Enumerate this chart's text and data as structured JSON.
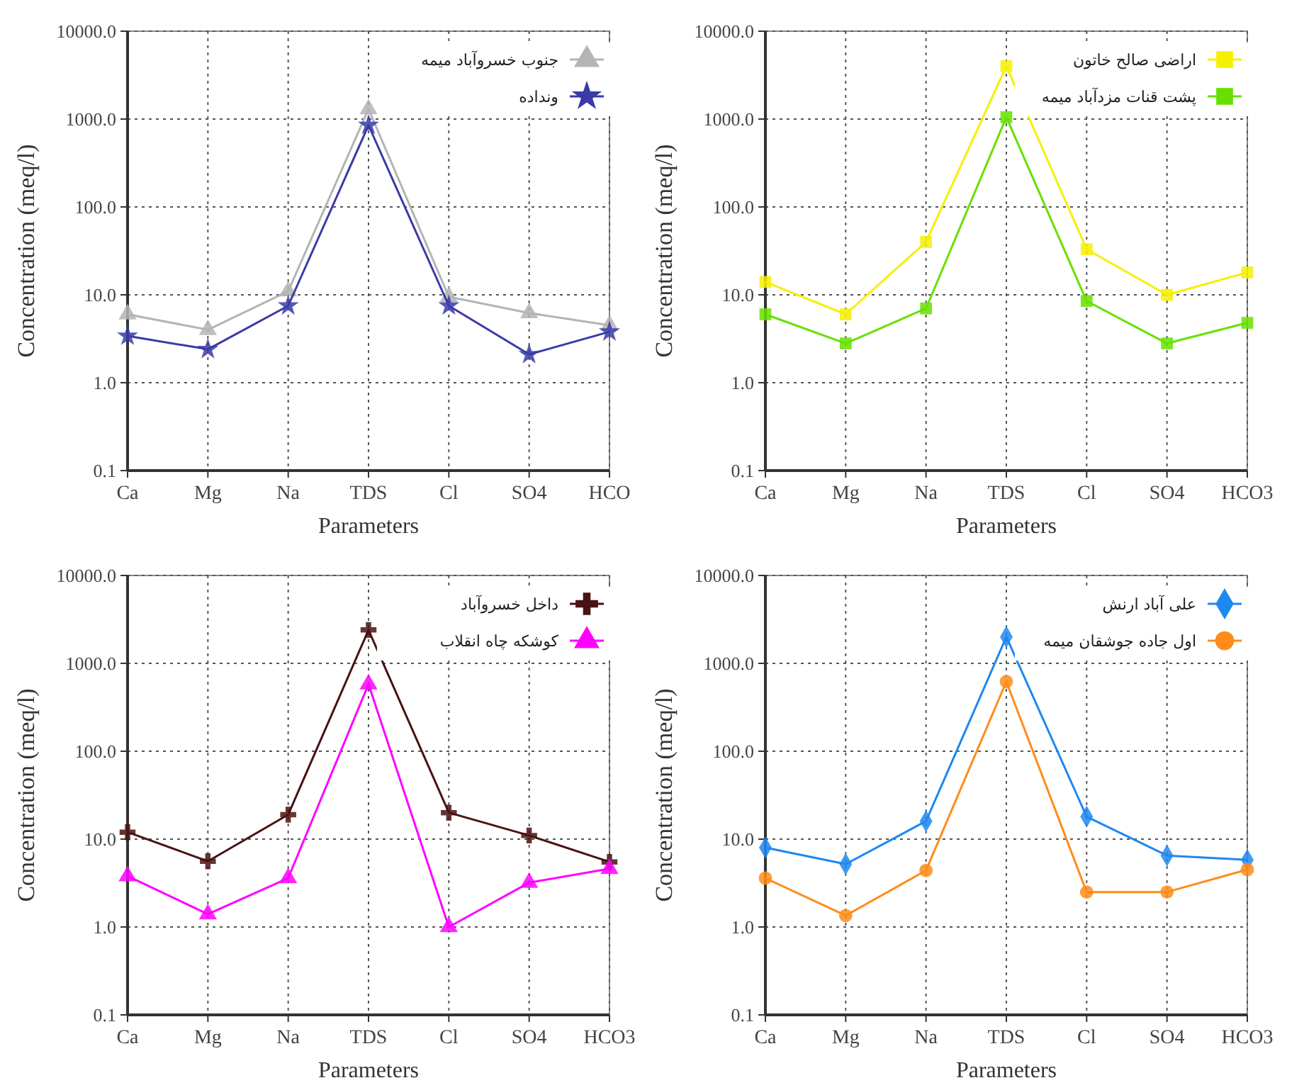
{
  "chart_data": [
    {
      "type": "line",
      "categories": [
        "Ca",
        "Mg",
        "Na",
        "TDS",
        "Cl",
        "SO4",
        "HCO"
      ],
      "xlabel": "Parameters",
      "ylabel": "Concentration (meq/l)",
      "log": "y",
      "ylim": [
        0.1,
        10000
      ],
      "yticks": [
        {
          "value": 0.1,
          "label": "0.1"
        },
        {
          "value": 1,
          "label": "1.0"
        },
        {
          "value": 10,
          "label": "10.0"
        },
        {
          "value": 100,
          "label": "100.0"
        },
        {
          "value": 1000,
          "label": "1000.0"
        },
        {
          "value": 10000,
          "label": "10000.0"
        }
      ],
      "grid": true,
      "legend": "top right",
      "series": [
        {
          "name": "جنوب خسروآباد میمه",
          "color": "#b4b4b4",
          "marker": "triangle",
          "values": [
            6,
            4,
            11,
            1300,
            9.5,
            6.2,
            4.5
          ]
        },
        {
          "name": "ونداده",
          "color": "#3a3aa8",
          "marker": "star",
          "values": [
            3.4,
            2.4,
            7.5,
            850,
            7.5,
            2.1,
            3.8
          ]
        }
      ]
    },
    {
      "type": "line",
      "categories": [
        "Ca",
        "Mg",
        "Na",
        "TDS",
        "Cl",
        "SO4",
        "HCO3"
      ],
      "xlabel": "Parameters",
      "ylabel": "Concentration (meq/l)",
      "log": "y",
      "ylim": [
        0.1,
        10000
      ],
      "yticks": [
        {
          "value": 0.1,
          "label": "0.1"
        },
        {
          "value": 1,
          "label": "1.0"
        },
        {
          "value": 10,
          "label": "10.0"
        },
        {
          "value": 100,
          "label": "100.0"
        },
        {
          "value": 1000,
          "label": "1000.0"
        },
        {
          "value": 10000,
          "label": "10000.0"
        }
      ],
      "grid": true,
      "legend": "top right",
      "series": [
        {
          "name": "اراضی صالح خاتون",
          "color": "#f5f000",
          "marker": "square",
          "values": [
            14,
            6,
            40,
            4000,
            33,
            10,
            18
          ]
        },
        {
          "name": "پشت قنات مزدآباد میمه",
          "color": "#66e000",
          "marker": "square",
          "values": [
            6,
            2.8,
            7,
            1050,
            8.5,
            2.8,
            4.8
          ]
        }
      ]
    },
    {
      "type": "line",
      "categories": [
        "Ca",
        "Mg",
        "Na",
        "TDS",
        "Cl",
        "SO4",
        "HCO3"
      ],
      "xlabel": "Parameters",
      "ylabel": "Concentration (meq/l)",
      "log": "y",
      "ylim": [
        0.1,
        10000
      ],
      "yticks": [
        {
          "value": 0.1,
          "label": "0.1"
        },
        {
          "value": 1,
          "label": "1.0"
        },
        {
          "value": 10,
          "label": "10.0"
        },
        {
          "value": 100,
          "label": "100.0"
        },
        {
          "value": 1000,
          "label": "1000.0"
        },
        {
          "value": 10000,
          "label": "10000.0"
        }
      ],
      "grid": true,
      "legend": "top right",
      "series": [
        {
          "name": "داخل خسروآباد",
          "color": "#4a1212",
          "marker": "cross",
          "values": [
            12,
            5.6,
            19,
            2400,
            20,
            11,
            5.5
          ]
        },
        {
          "name": "کوشکه چاه انقلاب",
          "color": "#ff00ff",
          "marker": "triangle",
          "values": [
            3.8,
            1.4,
            3.6,
            580,
            1.0,
            3.2,
            4.6
          ]
        }
      ]
    },
    {
      "type": "line",
      "categories": [
        "Ca",
        "Mg",
        "Na",
        "TDS",
        "Cl",
        "SO4",
        "HCO3"
      ],
      "xlabel": "Parameters",
      "ylabel": "Concentration (meq/l)",
      "log": "y",
      "ylim": [
        0.1,
        10000
      ],
      "yticks": [
        {
          "value": 0.1,
          "label": "0.1"
        },
        {
          "value": 1,
          "label": "1.0"
        },
        {
          "value": 10,
          "label": "10.0"
        },
        {
          "value": 100,
          "label": "100.0"
        },
        {
          "value": 1000,
          "label": "1000.0"
        },
        {
          "value": 10000,
          "label": "10000.0"
        }
      ],
      "grid": true,
      "legend": "top right",
      "series": [
        {
          "name": "علی آباد ارنش",
          "color": "#1e88f0",
          "marker": "diamond",
          "values": [
            8,
            5.2,
            16,
            2000,
            18,
            6.5,
            5.8
          ]
        },
        {
          "name": "اول جاده جوشقان میمه",
          "color": "#ff8c1a",
          "marker": "circle",
          "values": [
            3.6,
            1.35,
            4.4,
            620,
            2.5,
            2.5,
            4.5
          ]
        }
      ]
    }
  ]
}
